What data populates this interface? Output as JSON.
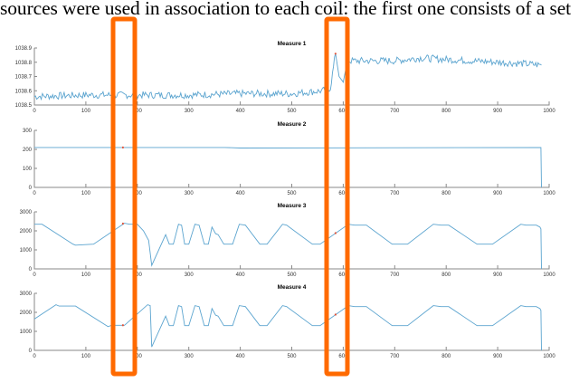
{
  "caption": "sources were used in association to each coil: the first one consists of a set",
  "colors": {
    "series": "#5ba4cf",
    "highlight": "#ff6a00",
    "marker": "#e0533a",
    "axis": "#8a8a8a"
  },
  "chart_data": [
    {
      "type": "line",
      "title": "Measure 1",
      "xlabel": "",
      "ylabel": "",
      "xlim": [
        0,
        1000
      ],
      "ylim": [
        1038.5,
        1038.9
      ],
      "xticks": [
        0,
        100,
        200,
        300,
        400,
        500,
        600,
        700,
        800,
        900,
        1000
      ],
      "yticks": [
        "1038.5",
        "1038.6",
        "1038.7",
        "1038.8",
        "1038.9"
      ],
      "grid": false,
      "description": "Noisy signal ~1038.55-1038.6 from 0 to ~570, rising slightly, spike to ~1038.86 at ~585, then jump to ~1038.82 plateau from ~610 to ~985 with noise",
      "x": [
        0,
        100,
        200,
        300,
        400,
        500,
        560,
        575,
        585,
        592,
        600,
        608,
        620,
        700,
        750,
        800,
        850,
        900,
        950,
        985
      ],
      "values": [
        1038.56,
        1038.57,
        1038.57,
        1038.57,
        1038.58,
        1038.58,
        1038.6,
        1038.62,
        1038.86,
        1038.7,
        1038.66,
        1038.81,
        1038.81,
        1038.81,
        1038.83,
        1038.82,
        1038.81,
        1038.8,
        1038.79,
        1038.78
      ],
      "marker": {
        "x": 585,
        "y": 1038.86
      }
    },
    {
      "type": "line",
      "title": "Measure 2",
      "xlim": [
        0,
        1000
      ],
      "ylim": [
        0,
        300
      ],
      "xticks": [
        0,
        100,
        200,
        300,
        400,
        500,
        600,
        700,
        800,
        900,
        1000
      ],
      "yticks": [
        "0",
        "100",
        "200",
        "300"
      ],
      "grid": false,
      "description": "Flat at ~210 from 0 to ~985, then drops to 0",
      "x": [
        0,
        370,
        400,
        984,
        985
      ],
      "values": [
        210,
        210,
        207,
        210,
        0
      ],
      "marker": {
        "x": 172,
        "y": 210
      }
    },
    {
      "type": "line",
      "title": "Measure 3",
      "xlim": [
        0,
        1000
      ],
      "ylim": [
        0,
        3000
      ],
      "xticks": [
        0,
        100,
        200,
        300,
        400,
        500,
        600,
        700,
        800,
        900,
        1000
      ],
      "yticks": [
        "0",
        "1000",
        "2000",
        "3000"
      ],
      "grid": false,
      "x": [
        0,
        15,
        75,
        80,
        115,
        175,
        185,
        200,
        212,
        222,
        228,
        255,
        262,
        270,
        280,
        286,
        292,
        300,
        312,
        320,
        330,
        338,
        345,
        352,
        357,
        368,
        374,
        385,
        398,
        410,
        438,
        452,
        482,
        490,
        540,
        555,
        610,
        622,
        645,
        695,
        705,
        725,
        775,
        790,
        805,
        860,
        870,
        890,
        945,
        955,
        975,
        982,
        984,
        985
      ],
      "values": [
        2350,
        2350,
        1300,
        1250,
        1300,
        2400,
        2350,
        2350,
        2000,
        1500,
        180,
        1800,
        1300,
        1300,
        2350,
        2300,
        1300,
        1300,
        2350,
        2300,
        1300,
        1300,
        2200,
        1850,
        1800,
        1300,
        1300,
        1300,
        2350,
        2300,
        1300,
        1300,
        2350,
        2300,
        1300,
        1300,
        2350,
        2300,
        2300,
        1300,
        1300,
        1300,
        2350,
        2300,
        2300,
        1300,
        1300,
        1300,
        2350,
        2300,
        2300,
        2200,
        2100,
        0
      ],
      "marker": {
        "x": 172,
        "y": 2380
      },
      "marker2": {
        "x": 585,
        "y": 1880
      }
    },
    {
      "type": "line",
      "title": "Measure 4",
      "xlim": [
        0,
        1000
      ],
      "ylim": [
        0,
        3000
      ],
      "xticks": [
        0,
        100,
        200,
        300,
        400,
        500,
        600,
        700,
        800,
        900,
        1000
      ],
      "yticks": [
        "0",
        "1000",
        "2000",
        "3000"
      ],
      "grid": false,
      "x": [
        0,
        42,
        48,
        80,
        143,
        150,
        175,
        220,
        225,
        228,
        255,
        262,
        270,
        280,
        286,
        292,
        300,
        312,
        320,
        330,
        338,
        345,
        352,
        357,
        368,
        374,
        385,
        398,
        410,
        438,
        452,
        482,
        490,
        540,
        555,
        610,
        622,
        645,
        695,
        705,
        725,
        775,
        790,
        805,
        860,
        870,
        890,
        945,
        955,
        975,
        982,
        984,
        985
      ],
      "values": [
        1650,
        2400,
        2330,
        2330,
        1250,
        1320,
        1320,
        2400,
        2350,
        180,
        1800,
        1300,
        1300,
        2350,
        2300,
        1300,
        1300,
        2350,
        2300,
        1300,
        1300,
        2200,
        1850,
        1800,
        1300,
        1300,
        1300,
        2350,
        2300,
        1300,
        1300,
        2350,
        2300,
        1300,
        1300,
        2350,
        2300,
        2300,
        1300,
        1300,
        1300,
        2350,
        2300,
        2300,
        1300,
        1300,
        1300,
        2350,
        2300,
        2300,
        2200,
        2100,
        0
      ],
      "marker": {
        "x": 172,
        "y": 1320
      },
      "marker2": {
        "x": 585,
        "y": 1880
      }
    }
  ],
  "highlights": [
    {
      "label": "highlight-1",
      "x_start_value": 150,
      "x_end_value": 195
    },
    {
      "label": "highlight-2",
      "x_start_value": 563,
      "x_end_value": 610
    }
  ]
}
